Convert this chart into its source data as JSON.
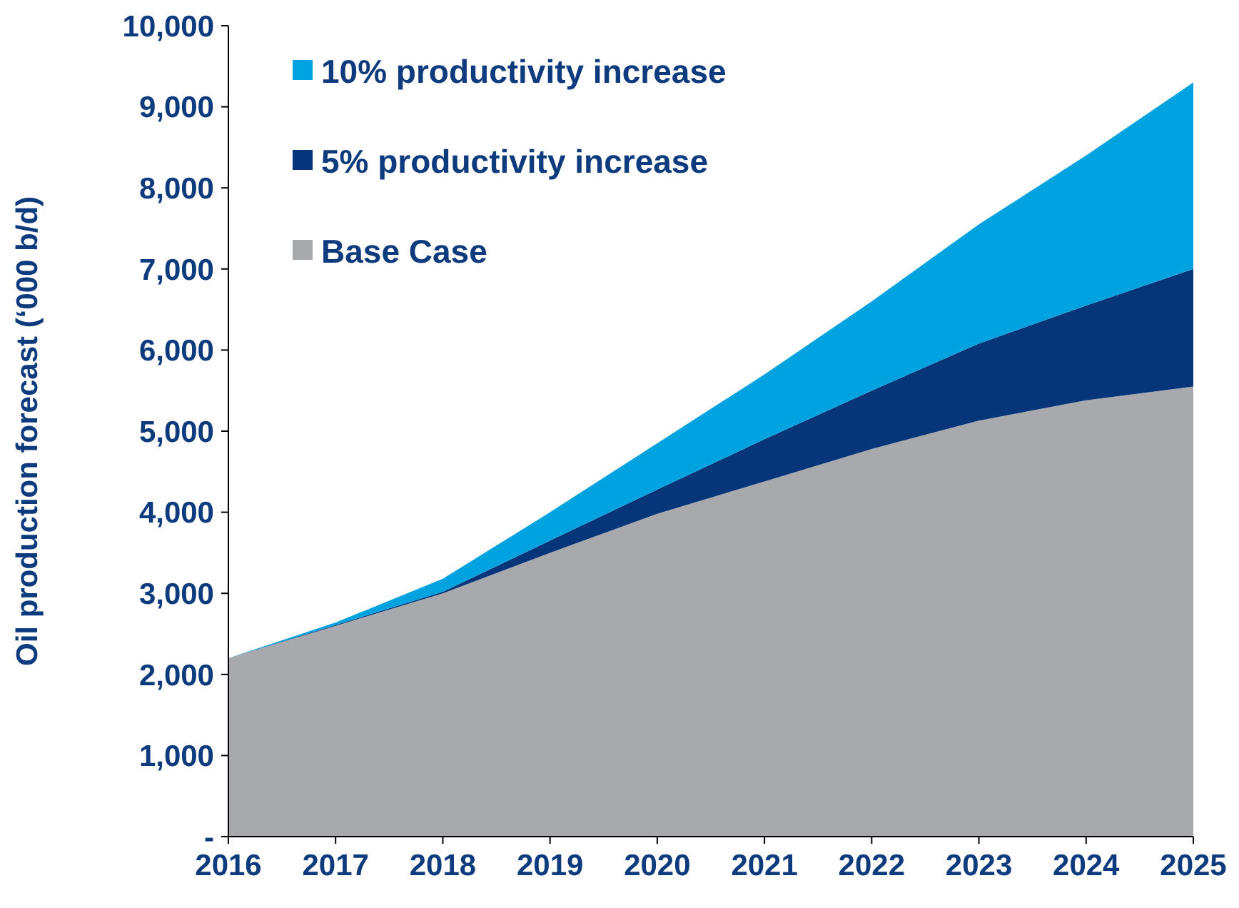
{
  "chart_data": {
    "type": "area",
    "stacked": true,
    "ylabel": "Oil production forecast (‘000 b/d)",
    "x": [
      2016,
      2017,
      2018,
      2019,
      2020,
      2021,
      2022,
      2023,
      2024,
      2025
    ],
    "xlim": [
      2016,
      2025
    ],
    "xticks": [
      2016,
      2017,
      2018,
      2019,
      2020,
      2021,
      2022,
      2023,
      2024,
      2025
    ],
    "ylim": [
      0,
      10000
    ],
    "yticks": [
      {
        "value": 0,
        "label": "-"
      },
      {
        "value": 1000,
        "label": "1,000"
      },
      {
        "value": 2000,
        "label": "2,000"
      },
      {
        "value": 3000,
        "label": "3,000"
      },
      {
        "value": 4000,
        "label": "4,000"
      },
      {
        "value": 5000,
        "label": "5,000"
      },
      {
        "value": 6000,
        "label": "6,000"
      },
      {
        "value": 7000,
        "label": "7,000"
      },
      {
        "value": 8000,
        "label": "8,000"
      },
      {
        "value": 9000,
        "label": "9,000"
      },
      {
        "value": 10000,
        "label": "10,000"
      }
    ],
    "grid": false,
    "legend": "top left",
    "series": [
      {
        "name": "Base Case",
        "color": "#a7a9ac",
        "values": [
          2200,
          2600,
          3000,
          3500,
          3980,
          4380,
          4780,
          5130,
          5380,
          5550
        ]
      },
      {
        "name": "5% productivity increase",
        "color": "#06357a",
        "values": [
          0,
          10,
          20,
          150,
          300,
          520,
          720,
          950,
          1170,
          1450
        ]
      },
      {
        "name": "10% productivity increase",
        "color": "#00a3e0",
        "values": [
          0,
          30,
          160,
          350,
          570,
          800,
          1100,
          1470,
          1850,
          2300
        ]
      }
    ]
  }
}
